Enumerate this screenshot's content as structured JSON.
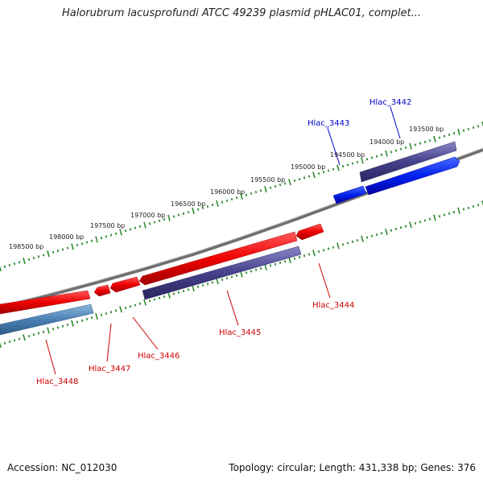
{
  "title": "Halorubrum lacusprofundi ATCC 49239 plasmid pHLAC01, complet...",
  "footer": {
    "accession": "Accession: NC_012030",
    "summary": "Topology: circular; Length: 431,338 bp; Genes: 376"
  },
  "scale_labels": [
    "193500 bp",
    "194000 bp",
    "194500 bp",
    "195000 bp",
    "195500 bp",
    "196000 bp",
    "196500 bp",
    "197000 bp",
    "197500 bp",
    "198000 bp",
    "198500 bp"
  ],
  "genes": [
    {
      "label": "Hlac_3442",
      "strand": "forward",
      "color": "#0000cc"
    },
    {
      "label": "Hlac_3443",
      "strand": "forward",
      "color": "#0000cc"
    },
    {
      "label": "Hlac_3444",
      "strand": "reverse",
      "color": "#cc0000"
    },
    {
      "label": "Hlac_3445",
      "strand": "reverse",
      "color": "#cc0000"
    },
    {
      "label": "Hlac_3446",
      "strand": "reverse",
      "color": "#cc0000"
    },
    {
      "label": "Hlac_3447",
      "strand": "reverse",
      "color": "#cc0000"
    },
    {
      "label": "Hlac_3448",
      "strand": "reverse",
      "color": "#cc0000"
    }
  ],
  "colors": {
    "backbone": "#7f7f7f",
    "tick": "#2e8b2e",
    "forward_gene": "#0000ee",
    "reverse_gene": "#ee0000",
    "cds_forward": "#3d3a7a",
    "cds_reverse": "#4a4a9a",
    "cds_rna": "#4f86b8"
  }
}
